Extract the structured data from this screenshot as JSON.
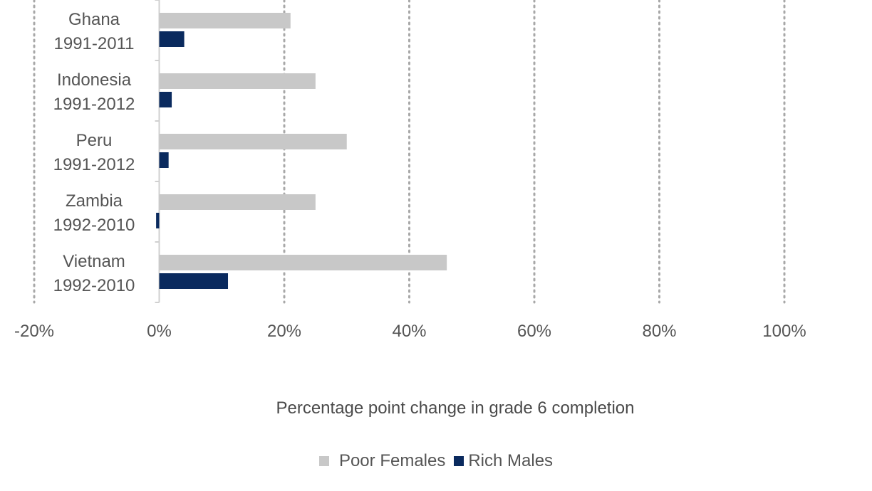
{
  "chart_data": {
    "type": "bar",
    "orientation": "horizontal",
    "categories": [
      [
        "Ghana",
        "1991-2011"
      ],
      [
        "Indonesia",
        "1991-2012"
      ],
      [
        "Peru",
        "1991-2012"
      ],
      [
        "Zambia",
        "1992-2010"
      ],
      [
        "Vietnam",
        "1992-2010"
      ]
    ],
    "series": [
      {
        "name": "Poor Females",
        "color": "#c8c8c8",
        "values": [
          21,
          25,
          30,
          25,
          46
        ]
      },
      {
        "name": "Rich Males",
        "color": "#0a2a5e",
        "values": [
          4,
          2,
          1.5,
          -0.5,
          11
        ]
      }
    ],
    "xlabel": "Percentage point change in grade 6 completion",
    "xlim": [
      -20,
      100
    ],
    "xticks": [
      -20,
      0,
      20,
      40,
      60,
      80,
      100
    ],
    "tick_labels": [
      "-20%",
      "0%",
      "20%",
      "40%",
      "60%",
      "80%",
      "100%"
    ],
    "grid": "vertical dotted",
    "legend_position": "bottom"
  }
}
